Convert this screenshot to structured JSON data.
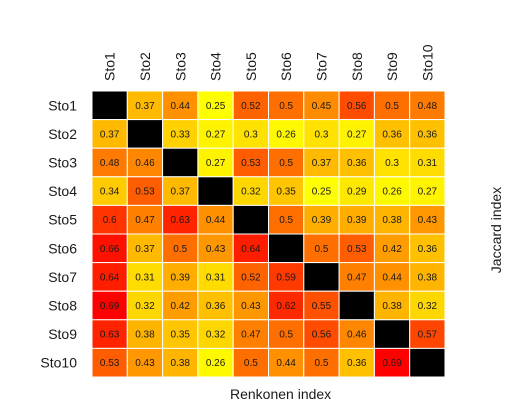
{
  "chart_data": {
    "type": "heatmap",
    "title": "",
    "xlabel": "Renkonen index",
    "ylabel": "Jaccard index",
    "column_labels": [
      "Sto1",
      "Sto2",
      "Sto3",
      "Sto4",
      "Sto5",
      "Sto6",
      "Sto7",
      "Sto8",
      "Sto9",
      "Sto10"
    ],
    "row_labels": [
      "Sto1",
      "Sto2",
      "Sto3",
      "Sto4",
      "Sto5",
      "Sto6",
      "Sto7",
      "Sto8",
      "Sto9",
      "Sto10"
    ],
    "values": [
      [
        null,
        0.37,
        0.44,
        0.25,
        0.52,
        0.5,
        0.45,
        0.56,
        0.5,
        0.48
      ],
      [
        0.37,
        null,
        0.33,
        0.27,
        0.3,
        0.26,
        0.3,
        0.27,
        0.36,
        0.36
      ],
      [
        0.48,
        0.46,
        null,
        0.27,
        0.53,
        0.5,
        0.37,
        0.36,
        0.3,
        0.31
      ],
      [
        0.34,
        0.53,
        0.37,
        null,
        0.32,
        0.35,
        0.25,
        0.29,
        0.26,
        0.27
      ],
      [
        0.6,
        0.47,
        0.63,
        0.44,
        null,
        0.5,
        0.39,
        0.39,
        0.38,
        0.43
      ],
      [
        0.66,
        0.37,
        0.5,
        0.43,
        0.64,
        null,
        0.5,
        0.53,
        0.42,
        0.36
      ],
      [
        0.64,
        0.31,
        0.39,
        0.31,
        0.52,
        0.59,
        null,
        0.47,
        0.44,
        0.38
      ],
      [
        0.69,
        0.32,
        0.42,
        0.36,
        0.43,
        0.62,
        0.55,
        null,
        0.38,
        0.32
      ],
      [
        0.63,
        0.38,
        0.35,
        0.32,
        0.47,
        0.5,
        0.56,
        0.46,
        null,
        0.57
      ],
      [
        0.53,
        0.43,
        0.38,
        0.26,
        0.5,
        0.44,
        0.5,
        0.36,
        0.69,
        null
      ]
    ],
    "diagonal_color": "#000000",
    "cell_border_color": "#ffffff",
    "color_scale": {
      "name": "heat",
      "stops": [
        "#ff0000",
        "#ff8000",
        "#ffff00"
      ],
      "high_values": "red",
      "low_values": "yellow"
    },
    "grid": false,
    "legend": "none"
  }
}
